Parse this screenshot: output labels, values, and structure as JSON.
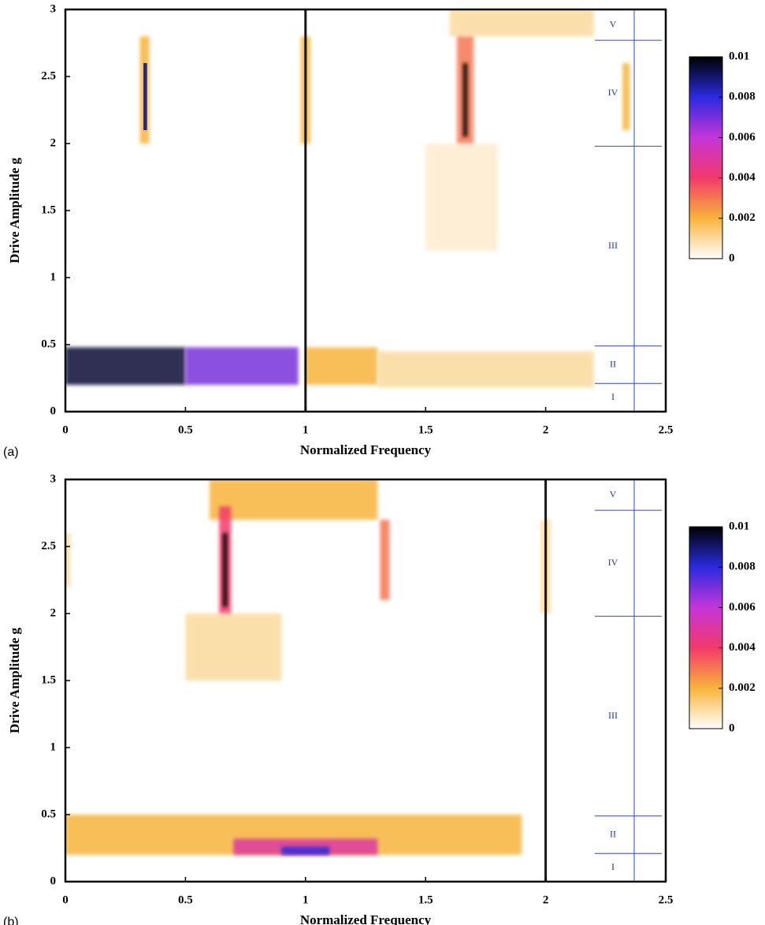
{
  "chart_data": [
    {
      "type": "heatmap",
      "panel_label": "(a)",
      "xlabel": "Normalized Frequency",
      "ylabel": "Drive Amplitude g",
      "xlim": [
        0,
        2.5
      ],
      "xticks": [
        0,
        0.5,
        1,
        1.5,
        2,
        2.5
      ],
      "ylim": [
        0,
        3
      ],
      "yticks": [
        0,
        0.5,
        1,
        1.5,
        2,
        2.5,
        3
      ],
      "clim": [
        0,
        0.01
      ],
      "cticks": [
        0,
        0.002,
        0.004,
        0.006,
        0.008,
        0.01
      ],
      "colormap": [
        "#ffffff",
        "#f7b43a",
        "#f23a6a",
        "#c535d8",
        "#2a2ae0",
        "#000000"
      ],
      "blobs": [
        {
          "x": [
            1.6,
            2.2
          ],
          "y": [
            2.8,
            3
          ],
          "value": 0.001
        },
        {
          "x": [
            1.5,
            1.8
          ],
          "y": [
            1.2,
            2
          ],
          "value": 0.0005
        },
        {
          "x": [
            0,
            0.5
          ],
          "y": [
            0.2,
            0.48
          ],
          "value": 0.0095
        },
        {
          "x": [
            0.5,
            0.97
          ],
          "y": [
            0.2,
            0.48
          ],
          "value": 0.007
        },
        {
          "x": [
            1,
            1.3
          ],
          "y": [
            0.2,
            0.48
          ],
          "value": 0.002
        },
        {
          "x": [
            1.3,
            2.2
          ],
          "y": [
            0.18,
            0.45
          ],
          "value": 0.001
        },
        {
          "x": [
            0.31,
            0.35
          ],
          "y": [
            2,
            2.8
          ],
          "value": 0.002
        },
        {
          "x": [
            0.325,
            0.34
          ],
          "y": [
            2.1,
            2.6
          ],
          "value": 0.009
        },
        {
          "x": [
            0.98,
            1.02
          ],
          "y": [
            2,
            2.8
          ],
          "value": 0.002
        },
        {
          "x": [
            1.63,
            1.7
          ],
          "y": [
            2,
            2.8
          ],
          "value": 0.003
        },
        {
          "x": [
            1.655,
            1.675
          ],
          "y": [
            2.05,
            2.6
          ],
          "value": 0.01
        },
        {
          "x": [
            2.32,
            2.35
          ],
          "y": [
            2.1,
            2.6
          ],
          "value": 0.002
        },
        {
          "x": [
            0.995,
            1.005
          ],
          "y": [
            0,
            3
          ],
          "value": 0.01
        }
      ],
      "region_labels": [
        "I",
        "II",
        "III",
        "IV",
        "V"
      ],
      "region_bounds": [
        0.21,
        0.49,
        1.98,
        2.77
      ]
    },
    {
      "type": "heatmap",
      "panel_label": "(b)",
      "xlabel": "Normalized Frequency",
      "ylabel": "Drive Amplitude g",
      "xlim": [
        0,
        2.5
      ],
      "xticks": [
        0,
        0.5,
        1,
        1.5,
        2,
        2.5
      ],
      "ylim": [
        0,
        3
      ],
      "yticks": [
        0,
        0.5,
        1,
        1.5,
        2,
        2.5,
        3
      ],
      "clim": [
        0,
        0.01
      ],
      "cticks": [
        0,
        0.002,
        0.004,
        0.006,
        0.008,
        0.01
      ],
      "colormap": [
        "#ffffff",
        "#f7b43a",
        "#f23a6a",
        "#c535d8",
        "#2a2ae0",
        "#000000"
      ],
      "blobs": [
        {
          "x": [
            0.6,
            1.3
          ],
          "y": [
            2.7,
            3
          ],
          "value": 0.002
        },
        {
          "x": [
            0.5,
            0.9
          ],
          "y": [
            1.5,
            2
          ],
          "value": 0.001
        },
        {
          "x": [
            0,
            1.9
          ],
          "y": [
            0.2,
            0.5
          ],
          "value": 0.002
        },
        {
          "x": [
            0.7,
            1.3
          ],
          "y": [
            0.2,
            0.32
          ],
          "value": 0.005
        },
        {
          "x": [
            0.9,
            1.1
          ],
          "y": [
            0.2,
            0.26
          ],
          "value": 0.008
        },
        {
          "x": [
            0.64,
            0.69
          ],
          "y": [
            2,
            2.8
          ],
          "value": 0.004
        },
        {
          "x": [
            0.655,
            0.675
          ],
          "y": [
            2.05,
            2.6
          ],
          "value": 0.01
        },
        {
          "x": [
            1.31,
            1.35
          ],
          "y": [
            2.1,
            2.7
          ],
          "value": 0.003
        },
        {
          "x": [
            1.98,
            2.02
          ],
          "y": [
            2,
            2.7
          ],
          "value": 0.001
        },
        {
          "x": [
            0,
            0.02
          ],
          "y": [
            2.2,
            2.6
          ],
          "value": 0.001
        },
        {
          "x": [
            1.995,
            2.005
          ],
          "y": [
            0,
            3
          ],
          "value": 0.01
        }
      ],
      "region_labels": [
        "I",
        "II",
        "III",
        "IV",
        "V"
      ],
      "region_bounds": [
        0.21,
        0.49,
        1.98,
        2.77
      ]
    }
  ]
}
